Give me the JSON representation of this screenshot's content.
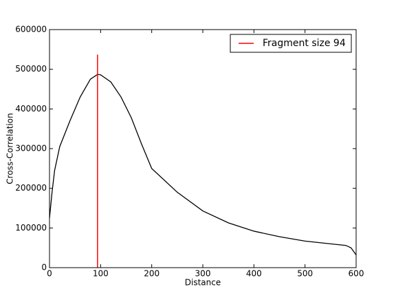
{
  "chart_data": {
    "type": "line",
    "x_label": "Distance",
    "y_label": "Cross-Correlation",
    "x": [
      0,
      5,
      10,
      20,
      40,
      60,
      80,
      94,
      100,
      120,
      140,
      160,
      180,
      200,
      250,
      300,
      350,
      400,
      450,
      500,
      550,
      580,
      590,
      600
    ],
    "values": [
      125000,
      190000,
      245000,
      305000,
      370000,
      430000,
      475000,
      487000,
      486000,
      468000,
      430000,
      378000,
      312000,
      250000,
      190000,
      143000,
      113000,
      92000,
      78000,
      67000,
      60000,
      56000,
      50000,
      32000
    ],
    "color": "#000000",
    "vlines": [
      {
        "name": "Fragment size 94",
        "x": 94,
        "ymax": 537000,
        "color": "#ff0000"
      }
    ],
    "xlim": [
      0,
      600
    ],
    "ylim": [
      0,
      600000
    ],
    "xticks": [
      0,
      100,
      200,
      300,
      400,
      500,
      600
    ],
    "yticks": [
      0,
      100000,
      200000,
      300000,
      400000,
      500000,
      600000
    ],
    "legend": "upper right"
  }
}
